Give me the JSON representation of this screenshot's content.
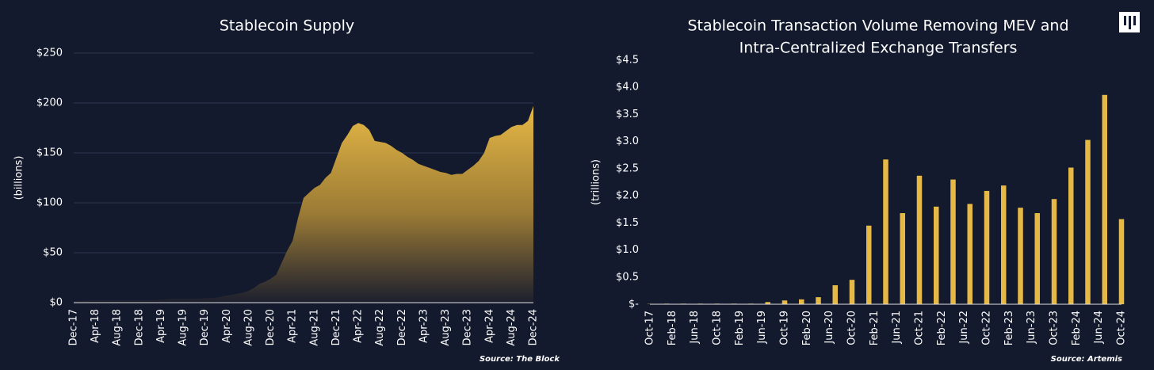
{
  "chart_data": [
    {
      "type": "area",
      "title": [
        "Stablecoin Supply"
      ],
      "y_label": "(billions)",
      "source": "Source: The Block",
      "color": "#e6b845",
      "grid": true,
      "categories": [
        "Dec-17",
        null,
        null,
        null,
        "Apr-18",
        null,
        null,
        null,
        "Aug-18",
        null,
        null,
        null,
        "Dec-18",
        null,
        null,
        null,
        "Apr-19",
        null,
        null,
        null,
        "Aug-19",
        null,
        null,
        null,
        "Dec-19",
        null,
        null,
        null,
        "Apr-20",
        null,
        null,
        null,
        "Aug-20",
        null,
        null,
        null,
        "Dec-20",
        null,
        null,
        null,
        "Apr-21",
        null,
        null,
        null,
        "Aug-21",
        null,
        null,
        null,
        "Dec-21",
        null,
        null,
        null,
        "Apr-22",
        null,
        null,
        null,
        "Aug-22",
        null,
        null,
        null,
        "Dec-22",
        null,
        null,
        null,
        "Apr-23",
        null,
        null,
        null,
        "Aug-23",
        null,
        null,
        null,
        "Dec-23",
        null,
        null,
        null,
        "Apr-24",
        null,
        null,
        null,
        "Aug-24",
        null,
        null,
        null,
        "Dec-24"
      ],
      "values": [
        1.5,
        2,
        2,
        2.5,
        2.5,
        2.5,
        2.5,
        2.5,
        2.5,
        2.5,
        2.5,
        2.5,
        2.5,
        2.5,
        2.5,
        2.5,
        3,
        3.5,
        4,
        4,
        4,
        4,
        4,
        4,
        4.5,
        4.5,
        5,
        6,
        7,
        8,
        9,
        10,
        12,
        15,
        19,
        21,
        24,
        28,
        40,
        52,
        62,
        85,
        105,
        110,
        115,
        118,
        125,
        130,
        145,
        160,
        168,
        177,
        180,
        178,
        173,
        162,
        161,
        160,
        157,
        153,
        150,
        146,
        143,
        139,
        137,
        135,
        133,
        131,
        130,
        128,
        129,
        129,
        133,
        137,
        142,
        150,
        165,
        167,
        168,
        172,
        176,
        178,
        178,
        182,
        197
      ],
      "ylim": [
        0,
        250
      ],
      "yticks": [
        {
          "value": 0,
          "label": "$0"
        },
        {
          "value": 50,
          "label": "$50"
        },
        {
          "value": 100,
          "label": "$100"
        },
        {
          "value": 150,
          "label": "$150"
        },
        {
          "value": 200,
          "label": "$200"
        },
        {
          "value": 250,
          "label": "$250"
        }
      ]
    },
    {
      "type": "bar",
      "title": [
        "Stablecoin Transaction Volume Removing MEV and",
        "Intra-Centralized Exchange Transfers"
      ],
      "y_label": "(trillions)",
      "source": "Source: Artemis",
      "color": "#e6b845",
      "grid": false,
      "categories": [
        "Oct-17",
        null,
        null,
        null,
        "Feb-18",
        null,
        null,
        null,
        "Jun-18",
        null,
        null,
        null,
        "Oct-18",
        null,
        null,
        null,
        "Feb-19",
        null,
        null,
        null,
        "Jun-19",
        null,
        null,
        null,
        "Oct-19",
        null,
        null,
        null,
        "Feb-20",
        null,
        null,
        null,
        "Jun-20",
        null,
        null,
        null,
        "Oct-20",
        null,
        null,
        null,
        "Feb-21",
        null,
        null,
        null,
        "Jun-21",
        null,
        null,
        null,
        "Oct-21",
        null,
        null,
        null,
        "Feb-22",
        null,
        null,
        null,
        "Jun-22",
        null,
        null,
        null,
        "Oct-22",
        null,
        null,
        null,
        "Feb-23",
        null,
        null,
        null,
        "Jun-23",
        null,
        null,
        null,
        "Oct-23",
        null,
        null,
        null,
        "Feb-24",
        null,
        null,
        null,
        "Jun-24",
        null,
        null,
        null,
        "Oct-24"
      ],
      "values": [
        0.005,
        null,
        null,
        0.01,
        null,
        null,
        0.01,
        null,
        null,
        0.01,
        null,
        null,
        0.01,
        null,
        null,
        0.01,
        null,
        null,
        0.01,
        null,
        null,
        0.04,
        null,
        null,
        0.07,
        null,
        null,
        0.09,
        null,
        null,
        0.13,
        null,
        null,
        0.35,
        null,
        null,
        0.45,
        null,
        null,
        1.45,
        null,
        null,
        2.67,
        null,
        null,
        1.68,
        null,
        null,
        2.37,
        null,
        null,
        1.8,
        null,
        null,
        2.3,
        null,
        null,
        1.85,
        null,
        null,
        2.09,
        null,
        null,
        2.19,
        null,
        null,
        1.78,
        null,
        null,
        1.68,
        null,
        null,
        1.94,
        null,
        null,
        2.52,
        null,
        null,
        3.03,
        null,
        null,
        3.86,
        null,
        null,
        1.57
      ],
      "ylim": [
        0,
        4.5
      ],
      "yticks": [
        {
          "value": 0,
          "label": "$-"
        },
        {
          "value": 0.5,
          "label": "$0.5"
        },
        {
          "value": 1,
          "label": "$1.0"
        },
        {
          "value": 1.5,
          "label": "$1.5"
        },
        {
          "value": 2,
          "label": "$2.0"
        },
        {
          "value": 2.5,
          "label": "$2.5"
        },
        {
          "value": 3,
          "label": "$3.0"
        },
        {
          "value": 3.5,
          "label": "$3.5"
        },
        {
          "value": 4,
          "label": "$4.0"
        },
        {
          "value": 4.5,
          "label": "$4.5"
        }
      ]
    }
  ]
}
